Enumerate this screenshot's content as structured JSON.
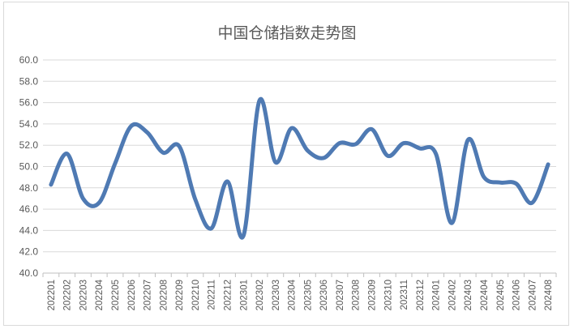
{
  "chart_data": {
    "type": "line",
    "title": "中国仓储指数走势图",
    "xlabel": "",
    "ylabel": "",
    "ylim": [
      40,
      60
    ],
    "yticks": [
      "40.0",
      "42.0",
      "44.0",
      "46.0",
      "48.0",
      "50.0",
      "52.0",
      "54.0",
      "56.0",
      "58.0",
      "60.0"
    ],
    "grid": true,
    "legend": "none",
    "categories": [
      "202201",
      "202202",
      "202203",
      "202204",
      "202205",
      "202206",
      "202207",
      "202208",
      "202209",
      "202210",
      "202211",
      "202212",
      "202301",
      "202302",
      "202303",
      "202304",
      "202305",
      "202306",
      "202307",
      "202308",
      "202309",
      "202310",
      "202311",
      "202312",
      "202401",
      "202402",
      "202403",
      "202404",
      "202405",
      "202406",
      "202407",
      "202408"
    ],
    "series": [
      {
        "color": "#4f7ab3",
        "values": [
          48.3,
          51.2,
          47.0,
          46.6,
          50.3,
          53.8,
          53.2,
          51.3,
          51.9,
          46.9,
          44.2,
          48.6,
          43.5,
          56.2,
          50.4,
          53.6,
          51.5,
          50.8,
          52.2,
          52.1,
          53.5,
          51.0,
          52.2,
          51.7,
          51.2,
          44.7,
          52.5,
          49.0,
          48.5,
          48.4,
          46.6,
          50.2
        ]
      }
    ]
  }
}
